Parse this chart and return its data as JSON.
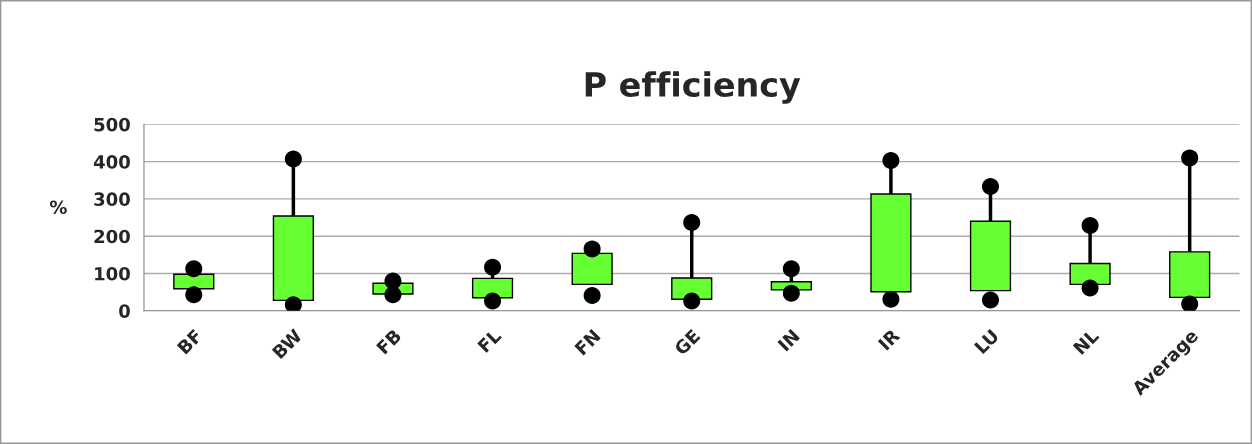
{
  "chart_data": {
    "type": "bar",
    "title": "P efficiency",
    "ylabel": "%",
    "categories": [
      "BF",
      "BW",
      "FB",
      "FL",
      "FN",
      "GE",
      "IN",
      "IR",
      "LU",
      "NL",
      "Average"
    ],
    "series": [
      {
        "type": "bar",
        "color": "#66ff33",
        "base": [
          59,
          28,
          45,
          35,
          71,
          31,
          56,
          51,
          54,
          71,
          36
        ],
        "values": [
          39,
          226,
          29,
          52,
          83,
          57,
          22,
          262,
          186,
          56,
          122
        ]
      },
      {
        "type": "scatter",
        "color": "#000000",
        "marker": "circle",
        "values": [
          113,
          407,
          80,
          117,
          166,
          237,
          113,
          403,
          333,
          229,
          410
        ]
      },
      {
        "type": "scatter",
        "color": "#000000",
        "marker": "circle",
        "values": [
          43,
          16,
          43,
          26,
          41,
          26,
          47,
          31,
          29,
          61,
          18
        ]
      }
    ],
    "ylim": [
      0,
      500
    ],
    "yticks": [
      0,
      100,
      200,
      300,
      400,
      500
    ],
    "grid": "y",
    "legend": false
  }
}
